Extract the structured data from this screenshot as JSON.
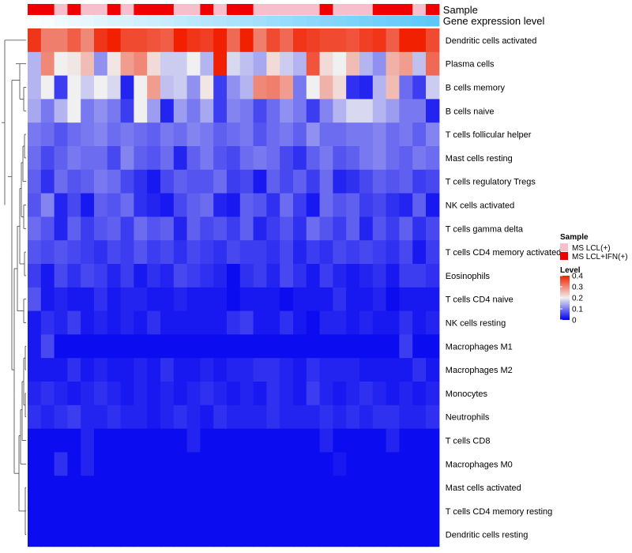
{
  "chart_data": {
    "type": "heatmap",
    "title": "",
    "columns": 31,
    "annotations": [
      {
        "name": "Sample"
      },
      {
        "name": "Gene expression level"
      }
    ],
    "sample_annotation": [
      1,
      1,
      0,
      1,
      0,
      0,
      1,
      0,
      1,
      1,
      1,
      0,
      0,
      1,
      0,
      1,
      1,
      0,
      0,
      0,
      0,
      0,
      1,
      0,
      0,
      0,
      1,
      1,
      1,
      0,
      1
    ],
    "gene_expression_annotation": [
      0.02,
      0.05,
      0.08,
      0.11,
      0.14,
      0.17,
      0.2,
      0.23,
      0.26,
      0.29,
      0.32,
      0.35,
      0.38,
      0.41,
      0.44,
      0.47,
      0.5,
      0.53,
      0.56,
      0.59,
      0.62,
      0.65,
      0.68,
      0.71,
      0.74,
      0.77,
      0.8,
      0.83,
      0.86,
      0.89,
      0.92
    ],
    "row_labels": [
      "Dendritic cells activated",
      "Plasma cells",
      "B cells memory",
      "B cells naive",
      "T cells follicular helper",
      "Mast cells resting",
      "T cells regulatory  Tregs",
      "NK cells activated",
      "T cells gamma delta",
      "T cells CD4 memory activated",
      "Eosinophils",
      "T cells CD4 naive",
      "NK cells resting",
      "Macrophages M1",
      "Macrophages M2",
      "Monocytes",
      "Neutrophils",
      "T cells CD8",
      "Macrophages M0",
      "Mast cells activated",
      "T cells CD4 memory resting",
      "Dendritic cells resting"
    ],
    "values": [
      [
        0.38,
        0.31,
        0.31,
        0.34,
        0.3,
        0.38,
        0.4,
        0.36,
        0.36,
        0.35,
        0.34,
        0.4,
        0.38,
        0.37,
        0.4,
        0.33,
        0.4,
        0.31,
        0.36,
        0.33,
        0.38,
        0.37,
        0.36,
        0.36,
        0.35,
        0.37,
        0.38,
        0.34,
        0.4,
        0.4,
        0.36
      ],
      [
        0.15,
        0.3,
        0.2,
        0.21,
        0.25,
        0.12,
        0.21,
        0.28,
        0.3,
        0.22,
        0.17,
        0.17,
        0.2,
        0.15,
        0.4,
        0.18,
        0.16,
        0.14,
        0.22,
        0.17,
        0.15,
        0.35,
        0.22,
        0.2,
        0.25,
        0.15,
        0.12,
        0.26,
        0.28,
        0.16,
        0.33
      ],
      [
        0.15,
        0.2,
        0.05,
        0.2,
        0.17,
        0.2,
        0.18,
        0.03,
        0.2,
        0.28,
        0.16,
        0.17,
        0.12,
        0.21,
        0.05,
        0.12,
        0.15,
        0.3,
        0.31,
        0.28,
        0.1,
        0.2,
        0.26,
        0.22,
        0.04,
        0.03,
        0.15,
        0.25,
        0.09,
        0.05,
        0.17
      ],
      [
        0.14,
        0.1,
        0.15,
        0.2,
        0.1,
        0.12,
        0.1,
        0.05,
        0.2,
        0.13,
        0.03,
        0.13,
        0.1,
        0.14,
        0.05,
        0.11,
        0.1,
        0.06,
        0.09,
        0.12,
        0.1,
        0.05,
        0.11,
        0.15,
        0.18,
        0.18,
        0.15,
        0.13,
        0.1,
        0.1,
        0.03
      ],
      [
        0.1,
        0.09,
        0.07,
        0.09,
        0.1,
        0.11,
        0.09,
        0.1,
        0.09,
        0.08,
        0.1,
        0.09,
        0.11,
        0.1,
        0.08,
        0.09,
        0.1,
        0.07,
        0.09,
        0.1,
        0.08,
        0.12,
        0.09,
        0.09,
        0.1,
        0.1,
        0.11,
        0.09,
        0.1,
        0.08,
        0.11
      ],
      [
        0.09,
        0.06,
        0.08,
        0.1,
        0.09,
        0.09,
        0.06,
        0.11,
        0.08,
        0.07,
        0.09,
        0.03,
        0.08,
        0.1,
        0.07,
        0.06,
        0.09,
        0.1,
        0.09,
        0.06,
        0.04,
        0.08,
        0.1,
        0.07,
        0.08,
        0.1,
        0.11,
        0.09,
        0.08,
        0.1,
        0.09
      ],
      [
        0.08,
        0.04,
        0.09,
        0.07,
        0.08,
        0.1,
        0.09,
        0.06,
        0.04,
        0.02,
        0.06,
        0.08,
        0.07,
        0.07,
        0.09,
        0.05,
        0.06,
        0.02,
        0.08,
        0.06,
        0.08,
        0.05,
        0.09,
        0.03,
        0.04,
        0.06,
        0.08,
        0.07,
        0.08,
        0.05,
        0.06
      ],
      [
        0.07,
        0.11,
        0.03,
        0.06,
        0.02,
        0.08,
        0.07,
        0.09,
        0.04,
        0.03,
        0.02,
        0.06,
        0.08,
        0.09,
        0.03,
        0.02,
        0.08,
        0.07,
        0.04,
        0.09,
        0.05,
        0.02,
        0.09,
        0.07,
        0.08,
        0.05,
        0.06,
        0.04,
        0.03,
        0.08,
        0.02
      ],
      [
        0.09,
        0.07,
        0.03,
        0.08,
        0.05,
        0.07,
        0.08,
        0.05,
        0.09,
        0.07,
        0.08,
        0.03,
        0.08,
        0.06,
        0.07,
        0.05,
        0.08,
        0.03,
        0.05,
        0.07,
        0.04,
        0.09,
        0.07,
        0.05,
        0.08,
        0.03,
        0.07,
        0.05,
        0.08,
        0.04,
        0.06
      ],
      [
        0.07,
        0.06,
        0.07,
        0.06,
        0.05,
        0.04,
        0.06,
        0.05,
        0.07,
        0.05,
        0.06,
        0.04,
        0.06,
        0.05,
        0.04,
        0.06,
        0.05,
        0.05,
        0.04,
        0.06,
        0.03,
        0.05,
        0.04,
        0.06,
        0.05,
        0.06,
        0.05,
        0.04,
        0.06,
        0.02,
        0.05
      ],
      [
        0.05,
        0.02,
        0.06,
        0.04,
        0.06,
        0.05,
        0.03,
        0.05,
        0.02,
        0.04,
        0.03,
        0.06,
        0.05,
        0.04,
        0.03,
        0.01,
        0.04,
        0.05,
        0.03,
        0.06,
        0.04,
        0.02,
        0.05,
        0.03,
        0.02,
        0.03,
        0.04,
        0.02,
        0.05,
        0.05,
        0.04
      ],
      [
        0.07,
        0.02,
        0.03,
        0.02,
        0.02,
        0.04,
        0.02,
        0.03,
        0.03,
        0.02,
        0.02,
        0.03,
        0.02,
        0.02,
        0.02,
        0.01,
        0.02,
        0.02,
        0.02,
        0.01,
        0.02,
        0.02,
        0.02,
        0.04,
        0.02,
        0.02,
        0.03,
        0.01,
        0.02,
        0.02,
        0.02
      ],
      [
        0.02,
        0.04,
        0.03,
        0.05,
        0.02,
        0.03,
        0.02,
        0.03,
        0.02,
        0.04,
        0.02,
        0.02,
        0.02,
        0.02,
        0.02,
        0.04,
        0.05,
        0.02,
        0.02,
        0.04,
        0.02,
        0.01,
        0.03,
        0.03,
        0.02,
        0.03,
        0.02,
        0.02,
        0.04,
        0.02,
        0.03
      ],
      [
        0.02,
        0.06,
        0.01,
        0.01,
        0.01,
        0.01,
        0.01,
        0.01,
        0.01,
        0.01,
        0.01,
        0.01,
        0.01,
        0.01,
        0.01,
        0.01,
        0.01,
        0.01,
        0.01,
        0.01,
        0.01,
        0.01,
        0.01,
        0.01,
        0.01,
        0.01,
        0.01,
        0.01,
        0.05,
        0.01,
        0.01
      ],
      [
        0.02,
        0.02,
        0.02,
        0.04,
        0.02,
        0.03,
        0.02,
        0.02,
        0.03,
        0.02,
        0.04,
        0.02,
        0.02,
        0.03,
        0.02,
        0.03,
        0.03,
        0.04,
        0.04,
        0.03,
        0.02,
        0.04,
        0.03,
        0.03,
        0.03,
        0.02,
        0.02,
        0.02,
        0.02,
        0.04,
        0.02
      ],
      [
        0.03,
        0.04,
        0.03,
        0.02,
        0.03,
        0.04,
        0.03,
        0.02,
        0.03,
        0.02,
        0.03,
        0.02,
        0.03,
        0.04,
        0.03,
        0.02,
        0.03,
        0.02,
        0.04,
        0.03,
        0.02,
        0.05,
        0.03,
        0.02,
        0.03,
        0.04,
        0.03,
        0.02,
        0.03,
        0.02,
        0.03
      ],
      [
        0.04,
        0.03,
        0.04,
        0.05,
        0.03,
        0.03,
        0.04,
        0.03,
        0.03,
        0.02,
        0.03,
        0.04,
        0.03,
        0.02,
        0.04,
        0.03,
        0.03,
        0.03,
        0.04,
        0.03,
        0.03,
        0.03,
        0.04,
        0.03,
        0.04,
        0.03,
        0.04,
        0.04,
        0.03,
        0.03,
        0.04
      ],
      [
        0.01,
        0.01,
        0.01,
        0.01,
        0.03,
        0.01,
        0.01,
        0.01,
        0.01,
        0.01,
        0.01,
        0.01,
        0.03,
        0.01,
        0.01,
        0.01,
        0.01,
        0.01,
        0.01,
        0.01,
        0.01,
        0.01,
        0.03,
        0.01,
        0.01,
        0.01,
        0.01,
        0.03,
        0.01,
        0.01,
        0.01
      ],
      [
        0.01,
        0.01,
        0.04,
        0.01,
        0.03,
        0.01,
        0.01,
        0.01,
        0.01,
        0.01,
        0.01,
        0.01,
        0.01,
        0.01,
        0.01,
        0.01,
        0.01,
        0.01,
        0.01,
        0.01,
        0.01,
        0.01,
        0.01,
        0.02,
        0.01,
        0.01,
        0.01,
        0.01,
        0.01,
        0.01,
        0.01
      ],
      [
        0.01,
        0.01,
        0.01,
        0.01,
        0.01,
        0.01,
        0.01,
        0.01,
        0.01,
        0.01,
        0.01,
        0.01,
        0.01,
        0.01,
        0.01,
        0.01,
        0.01,
        0.01,
        0.01,
        0.01,
        0.01,
        0.01,
        0.01,
        0.01,
        0.01,
        0.01,
        0.01,
        0.01,
        0.01,
        0.01,
        0.01
      ],
      [
        0.01,
        0.01,
        0.01,
        0.01,
        0.01,
        0.01,
        0.01,
        0.01,
        0.01,
        0.01,
        0.01,
        0.01,
        0.01,
        0.01,
        0.01,
        0.01,
        0.01,
        0.01,
        0.01,
        0.01,
        0.01,
        0.01,
        0.01,
        0.01,
        0.01,
        0.01,
        0.01,
        0.01,
        0.01,
        0.01,
        0.01
      ],
      [
        0.01,
        0.01,
        0.01,
        0.01,
        0.01,
        0.01,
        0.01,
        0.01,
        0.01,
        0.01,
        0.01,
        0.01,
        0.01,
        0.01,
        0.01,
        0.01,
        0.01,
        0.01,
        0.01,
        0.01,
        0.01,
        0.01,
        0.01,
        0.01,
        0.01,
        0.01,
        0.01,
        0.01,
        0.01,
        0.01,
        0.01
      ]
    ],
    "legend": {
      "sample_title": "Sample",
      "sample_entries": [
        {
          "label": "MS LCL(+)",
          "color": "#f7bfcb"
        },
        {
          "label": "MS LCL+IFN(+)",
          "color": "#f00000"
        }
      ],
      "level_title": "Level",
      "level_ticks": [
        "0.4",
        "0.3",
        "0.2",
        "0.1",
        "0"
      ],
      "level_range": [
        0,
        0.4
      ],
      "placement": "right"
    },
    "color_scale": {
      "low": "#0000f0",
      "mid": "#f0f0f0",
      "high": "#f02000",
      "mid_value": 0.2
    },
    "gene_expression_colors": {
      "low": "#ffffff",
      "high": "#4fc3f7"
    },
    "row_dendrogram": true
  }
}
